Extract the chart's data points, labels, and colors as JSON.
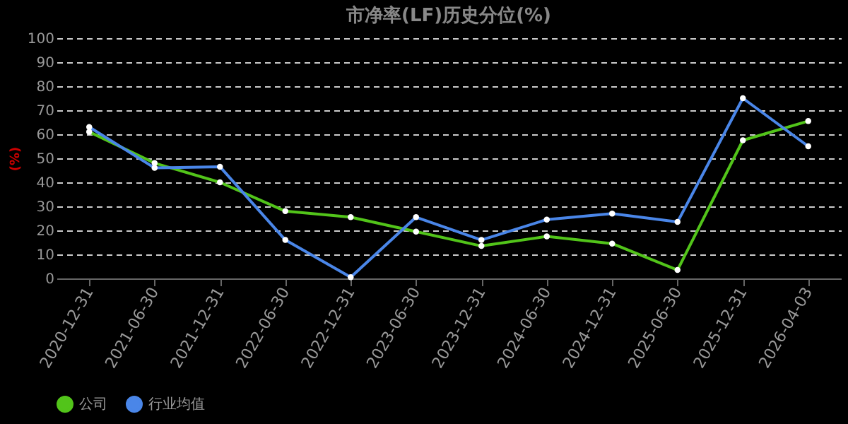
{
  "chart_data": {
    "type": "line",
    "title": "市净率(LF)历史分位(%)",
    "ylabel": "(%)",
    "categories": [
      "2020-12-31",
      "2021-06-30",
      "2021-12-31",
      "2022-06-30",
      "2022-12-31",
      "2023-06-30",
      "2023-12-31",
      "2024-06-30",
      "2024-12-31",
      "2025-06-30",
      "2025-12-31",
      "2026-04-03"
    ],
    "series": [
      {
        "name": "公司",
        "color": "#52c41a",
        "values": [
          61,
          48,
          40,
          28,
          25.5,
          19.5,
          13.5,
          17.5,
          14.5,
          3.5,
          57.5,
          65.5
        ]
      },
      {
        "name": "行业均值",
        "color": "#4a86e8",
        "values": [
          63,
          46,
          46.5,
          16,
          0.5,
          25.5,
          16,
          24.5,
          27,
          23.5,
          75,
          55
        ]
      }
    ],
    "ylim": [
      0,
      100
    ],
    "yticks": [
      0,
      10,
      20,
      30,
      40,
      50,
      60,
      70,
      80,
      90,
      100
    ],
    "grid": "y",
    "legend": "bottom",
    "marker": "circle",
    "line_style": "solid"
  }
}
